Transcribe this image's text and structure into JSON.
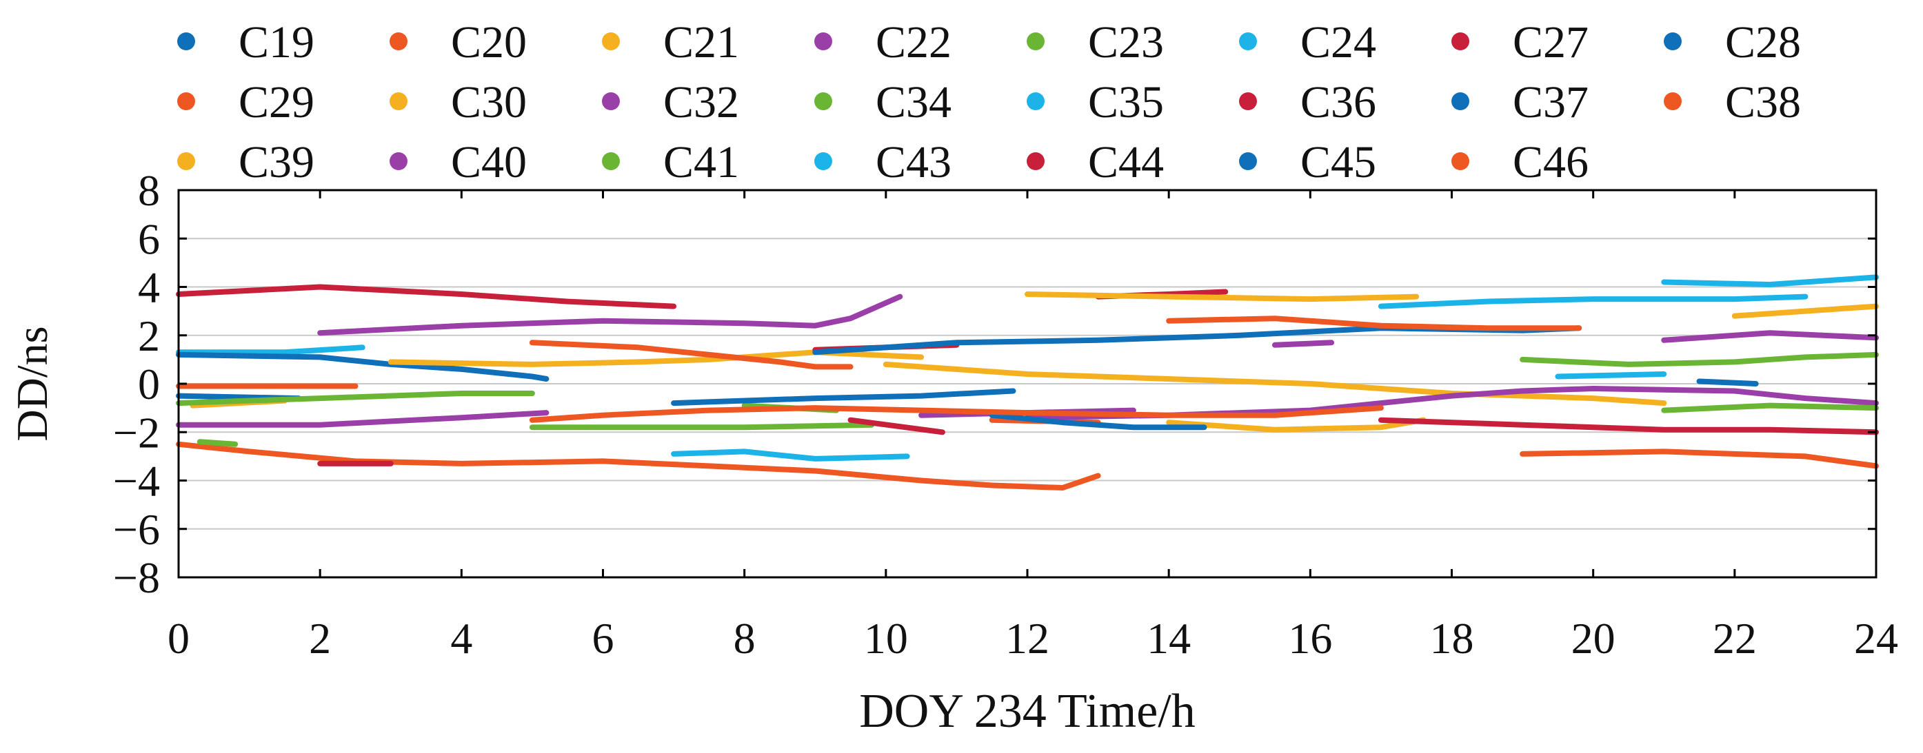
{
  "chart_data": {
    "type": "line",
    "title": "",
    "xlabel": "DOY 234 Time/h",
    "ylabel": "DD/ns",
    "xlim": [
      0,
      24
    ],
    "ylim": [
      -8,
      8
    ],
    "xticks": [
      "0",
      "2",
      "4",
      "6",
      "8",
      "10",
      "12",
      "14",
      "16",
      "18",
      "20",
      "22",
      "24"
    ],
    "yticks": [
      "8",
      "6",
      "4",
      "2",
      "0",
      "−2",
      "−4",
      "−6",
      "−8"
    ],
    "grid": "horizontal",
    "legend_position": "top",
    "series": [
      {
        "name": "C19",
        "color": "#0f6fb8",
        "segments": [
          [
            [
              0,
              -0.5
            ],
            [
              1.7,
              -0.6
            ]
          ]
        ]
      },
      {
        "name": "C20",
        "color": "#ee5622",
        "segments": [
          [
            [
              0,
              -0.1
            ],
            [
              2.5,
              -0.1
            ]
          ],
          [
            [
              11.5,
              -1.5
            ],
            [
              13,
              -1.6
            ]
          ]
        ]
      },
      {
        "name": "C21",
        "color": "#f5b020",
        "segments": [
          [
            [
              0.2,
              -0.9
            ],
            [
              1.5,
              -0.7
            ]
          ]
        ]
      },
      {
        "name": "C22",
        "color": "#9b3fa8",
        "segments": [
          [
            [
              2,
              2.1
            ],
            [
              4,
              2.4
            ],
            [
              6,
              2.6
            ],
            [
              8,
              2.5
            ],
            [
              9,
              2.4
            ],
            [
              9.5,
              2.7
            ],
            [
              10.2,
              3.6
            ]
          ]
        ]
      },
      {
        "name": "C23",
        "color": "#6ab534",
        "segments": [
          [
            [
              0,
              -0.8
            ],
            [
              2,
              -0.6
            ],
            [
              4,
              -0.4
            ],
            [
              5,
              -0.4
            ]
          ]
        ]
      },
      {
        "name": "C24",
        "color": "#1cb4e8",
        "segments": [
          [
            [
              0,
              1.3
            ],
            [
              1.5,
              1.3
            ],
            [
              2.6,
              1.5
            ]
          ]
        ]
      },
      {
        "name": "C27",
        "color": "#c8203a",
        "segments": [
          [
            [
              0,
              3.7
            ],
            [
              2,
              4.0
            ],
            [
              4,
              3.7
            ],
            [
              5.5,
              3.4
            ],
            [
              7,
              3.2
            ]
          ]
        ]
      },
      {
        "name": "C28",
        "color": "#0f6fb8",
        "segments": [
          [
            [
              0,
              1.2
            ],
            [
              2,
              1.1
            ],
            [
              3,
              0.8
            ],
            [
              4,
              0.6
            ],
            [
              5,
              0.3
            ],
            [
              5.2,
              0.2
            ]
          ]
        ]
      },
      {
        "name": "C29",
        "color": "#ee5622",
        "segments": [
          [
            [
              0,
              -2.5
            ],
            [
              1,
              -2.8
            ],
            [
              2.5,
              -3.2
            ],
            [
              4,
              -3.3
            ],
            [
              6,
              -3.2
            ],
            [
              7.5,
              -3.4
            ],
            [
              9,
              -3.6
            ],
            [
              10.5,
              -4.0
            ],
            [
              11.5,
              -4.2
            ],
            [
              12.5,
              -4.3
            ],
            [
              13,
              -3.8
            ]
          ]
        ]
      },
      {
        "name": "C30",
        "color": "#f5b020",
        "segments": [
          [
            [
              3,
              0.9
            ],
            [
              5,
              0.8
            ],
            [
              6.5,
              0.9
            ],
            [
              7.5,
              1.0
            ],
            [
              9,
              1.3
            ],
            [
              10.5,
              1.1
            ]
          ]
        ]
      },
      {
        "name": "C32",
        "color": "#9b3fa8",
        "segments": [
          [
            [
              0,
              -1.7
            ],
            [
              2,
              -1.7
            ],
            [
              4,
              -1.4
            ],
            [
              5.2,
              -1.2
            ]
          ],
          [
            [
              10.5,
              -1.3
            ],
            [
              12,
              -1.2
            ],
            [
              13.5,
              -1.1
            ]
          ]
        ]
      },
      {
        "name": "C34",
        "color": "#6ab534",
        "segments": [
          [
            [
              5,
              -1.8
            ],
            [
              6.5,
              -1.8
            ],
            [
              8,
              -1.8
            ],
            [
              9.8,
              -1.7
            ]
          ],
          [
            [
              0.3,
              -2.4
            ],
            [
              0.8,
              -2.5
            ]
          ]
        ]
      },
      {
        "name": "C35",
        "color": "#1cb4e8",
        "segments": [
          [
            [
              7,
              -2.9
            ],
            [
              8,
              -2.8
            ],
            [
              9,
              -3.1
            ],
            [
              10.3,
              -3.0
            ]
          ]
        ]
      },
      {
        "name": "C36",
        "color": "#c8203a",
        "segments": [
          [
            [
              2,
              -3.3
            ],
            [
              3,
              -3.3
            ]
          ],
          [
            [
              9,
              1.4
            ],
            [
              10,
              1.5
            ],
            [
              11,
              1.6
            ]
          ],
          [
            [
              13,
              3.6
            ],
            [
              14,
              3.7
            ],
            [
              14.8,
              3.8
            ]
          ]
        ]
      },
      {
        "name": "C37",
        "color": "#0f6fb8",
        "segments": [
          [
            [
              9,
              1.3
            ],
            [
              11,
              1.7
            ],
            [
              13,
              1.8
            ],
            [
              15,
              2.0
            ],
            [
              17,
              2.3
            ],
            [
              19,
              2.2
            ],
            [
              19.8,
              2.3
            ]
          ]
        ]
      },
      {
        "name": "C38",
        "color": "#ee5622",
        "segments": [
          [
            [
              5,
              1.7
            ],
            [
              6.5,
              1.5
            ],
            [
              7.5,
              1.2
            ],
            [
              8.5,
              0.9
            ],
            [
              9,
              0.7
            ],
            [
              9.5,
              0.7
            ]
          ],
          [
            [
              14,
              2.6
            ],
            [
              15.5,
              2.7
            ],
            [
              17,
              2.4
            ],
            [
              18.5,
              2.3
            ],
            [
              19.8,
              2.3
            ]
          ],
          [
            [
              19,
              -2.9
            ],
            [
              21,
              -2.8
            ],
            [
              23,
              -3.0
            ],
            [
              24,
              -3.4
            ]
          ]
        ]
      },
      {
        "name": "C39",
        "color": "#f5b020",
        "segments": [
          [
            [
              12,
              3.7
            ],
            [
              14,
              3.6
            ],
            [
              16,
              3.5
            ],
            [
              17.5,
              3.6
            ]
          ],
          [
            [
              10,
              0.8
            ],
            [
              12,
              0.4
            ],
            [
              14,
              0.2
            ],
            [
              16,
              0.0
            ],
            [
              18,
              -0.4
            ],
            [
              20,
              -0.6
            ],
            [
              21,
              -0.8
            ]
          ],
          [
            [
              14,
              -1.6
            ],
            [
              15.5,
              -1.9
            ],
            [
              17,
              -1.8
            ],
            [
              17.6,
              -1.5
            ]
          ],
          [
            [
              22,
              2.8
            ],
            [
              23,
              3.0
            ],
            [
              24,
              3.2
            ]
          ]
        ]
      },
      {
        "name": "C40",
        "color": "#9b3fa8",
        "segments": [
          [
            [
              12,
              -1.4
            ],
            [
              14,
              -1.3
            ],
            [
              16,
              -1.1
            ],
            [
              17,
              -0.8
            ],
            [
              18,
              -0.5
            ],
            [
              19,
              -0.3
            ],
            [
              20,
              -0.2
            ],
            [
              22,
              -0.3
            ],
            [
              23,
              -0.6
            ],
            [
              24,
              -0.8
            ]
          ],
          [
            [
              21,
              1.8
            ],
            [
              22.5,
              2.1
            ],
            [
              24,
              1.9
            ]
          ],
          [
            [
              15.5,
              1.6
            ],
            [
              16.3,
              1.7
            ]
          ]
        ]
      },
      {
        "name": "C41",
        "color": "#6ab534",
        "segments": [
          [
            [
              19,
              1.0
            ],
            [
              20.5,
              0.8
            ],
            [
              22,
              0.9
            ],
            [
              23,
              1.1
            ],
            [
              24,
              1.2
            ]
          ],
          [
            [
              21,
              -1.1
            ],
            [
              22.5,
              -0.9
            ],
            [
              24,
              -1.0
            ]
          ],
          [
            [
              8,
              -0.9
            ],
            [
              9.3,
              -1.1
            ]
          ]
        ]
      },
      {
        "name": "C43",
        "color": "#1cb4e8",
        "segments": [
          [
            [
              17,
              3.2
            ],
            [
              18.5,
              3.4
            ],
            [
              20,
              3.5
            ],
            [
              22,
              3.5
            ],
            [
              23,
              3.6
            ]
          ],
          [
            [
              21,
              4.2
            ],
            [
              22.5,
              4.1
            ],
            [
              24,
              4.4
            ]
          ],
          [
            [
              19.5,
              0.3
            ],
            [
              21,
              0.4
            ]
          ]
        ]
      },
      {
        "name": "C44",
        "color": "#c8203a",
        "segments": [
          [
            [
              9.5,
              -1.5
            ],
            [
              10.8,
              -2.0
            ]
          ],
          [
            [
              17,
              -1.5
            ],
            [
              19,
              -1.7
            ],
            [
              21,
              -1.9
            ],
            [
              22.5,
              -1.9
            ],
            [
              24,
              -2.0
            ]
          ]
        ]
      },
      {
        "name": "C45",
        "color": "#0f6fb8",
        "segments": [
          [
            [
              7,
              -0.8
            ],
            [
              9,
              -0.6
            ],
            [
              10.5,
              -0.5
            ],
            [
              11.8,
              -0.3
            ]
          ],
          [
            [
              11.5,
              -1.3
            ],
            [
              12.5,
              -1.6
            ],
            [
              13.5,
              -1.8
            ],
            [
              14.5,
              -1.8
            ]
          ],
          [
            [
              21.5,
              0.1
            ],
            [
              22.3,
              0.0
            ]
          ]
        ]
      },
      {
        "name": "C46",
        "color": "#ee5622",
        "segments": [
          [
            [
              5,
              -1.5
            ],
            [
              6,
              -1.3
            ],
            [
              7.5,
              -1.1
            ],
            [
              9,
              -1.0
            ],
            [
              10.5,
              -1.1
            ],
            [
              12,
              -1.2
            ],
            [
              14,
              -1.3
            ],
            [
              15.5,
              -1.3
            ],
            [
              17,
              -1.0
            ]
          ]
        ]
      }
    ]
  }
}
